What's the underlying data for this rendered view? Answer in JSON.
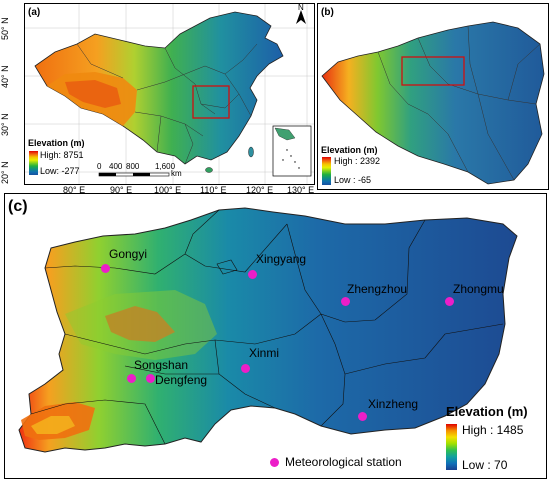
{
  "panel_a": {
    "label": "(a)",
    "lat_ticks": [
      "50° N",
      "40° N",
      "30° N",
      "20° N"
    ],
    "lon_ticks": [
      "80° E",
      "90° E",
      "100° E",
      "110° E",
      "120° E",
      "130° E"
    ],
    "legend_title": "Elevation (m)",
    "legend_high": "High: 8751",
    "legend_low": "Low: -277",
    "scale_ticks": [
      "0",
      "400",
      "800",
      "1,600"
    ],
    "scale_unit": "km",
    "north": "N"
  },
  "panel_b": {
    "label": "(b)",
    "legend_title": "Elevation (m)",
    "legend_high": "High : 2392",
    "legend_low": "Low : -65"
  },
  "panel_c": {
    "label": "(c)",
    "legend_title": "Elevation (m)",
    "legend_high": "High : 1485",
    "legend_low": "Low : 70",
    "station_legend": "Meteorological station",
    "stations": [
      "Gongyi",
      "Xingyang",
      "Zhengzhou",
      "Zhongmu",
      "Songshan",
      "Dengfeng",
      "Xinmi",
      "Xinzheng"
    ]
  },
  "colors": {
    "station": "#ec1ec8",
    "high": "#e00000",
    "low": "#1850a0",
    "highlight_box": "#d01010"
  }
}
